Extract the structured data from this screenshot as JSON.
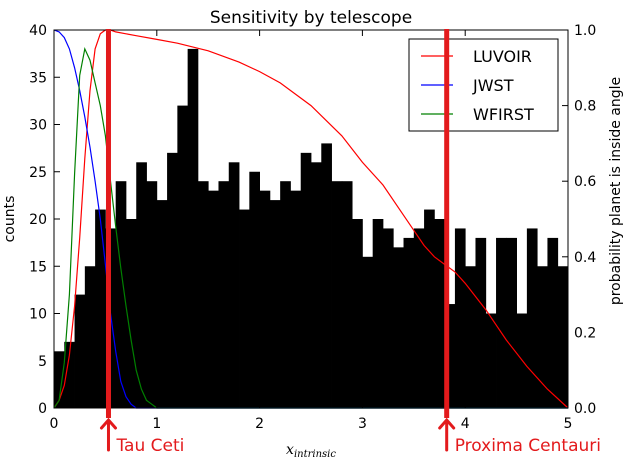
{
  "chart_data": {
    "type": "bar",
    "title": "Sensitivity by telescope",
    "xlabel": "x_intrinsic",
    "ylabel": "counts",
    "y2label": "probability planet is inside angle",
    "xlim": [
      0,
      5
    ],
    "ylim": [
      0,
      40
    ],
    "y2lim": [
      0,
      1
    ],
    "xticks": [
      0,
      1,
      2,
      3,
      4,
      5
    ],
    "xtick_labels": [
      "0",
      "1",
      "2",
      "3",
      "4",
      "5"
    ],
    "yticks": [
      0,
      5,
      10,
      15,
      20,
      25,
      30,
      35,
      40
    ],
    "ytick_labels": [
      "0",
      "5",
      "10",
      "15",
      "20",
      "25",
      "30",
      "35",
      "40"
    ],
    "y2ticks": [
      0,
      0.2,
      0.4,
      0.6,
      0.8,
      1.0
    ],
    "y2tick_labels": [
      "0.0",
      "0.2",
      "0.4",
      "0.6",
      "0.8",
      "1.0"
    ],
    "grid": false,
    "legend_position": "top-right",
    "histogram": {
      "bin_width": 0.1,
      "bin_starts": [
        0.0,
        0.1,
        0.2,
        0.3,
        0.4,
        0.5,
        0.6,
        0.7,
        0.8,
        0.9,
        1.0,
        1.1,
        1.2,
        1.3,
        1.4,
        1.5,
        1.6,
        1.7,
        1.8,
        1.9,
        2.0,
        2.1,
        2.2,
        2.3,
        2.4,
        2.5,
        2.6,
        2.7,
        2.8,
        2.9,
        3.0,
        3.1,
        3.2,
        3.3,
        3.4,
        3.5,
        3.6,
        3.7,
        3.8,
        3.9,
        4.0,
        4.1,
        4.2,
        4.3,
        4.4,
        4.5,
        4.6,
        4.7,
        4.8,
        4.9
      ],
      "counts": [
        6,
        7,
        12,
        15,
        21,
        19,
        24,
        20,
        26,
        24,
        22,
        27,
        32,
        38,
        24,
        23,
        24,
        26,
        21,
        25,
        23,
        22,
        24,
        23,
        27,
        26,
        28,
        24,
        24,
        20,
        16,
        20,
        19,
        17,
        18,
        19,
        21,
        20,
        11,
        19,
        15,
        18,
        10,
        18,
        18,
        10,
        19,
        15,
        18,
        15
      ],
      "color": "#000000"
    },
    "series": [
      {
        "name": "LUVOIR",
        "color": "#ff0000",
        "x": [
          0.0,
          0.05,
          0.1,
          0.15,
          0.2,
          0.25,
          0.3,
          0.35,
          0.4,
          0.45,
          0.5,
          0.55,
          0.6,
          0.7,
          0.8,
          1.0,
          1.2,
          1.5,
          1.8,
          2.0,
          2.2,
          2.5,
          2.8,
          3.0,
          3.2,
          3.4,
          3.5,
          3.6,
          3.7,
          3.8,
          3.9,
          4.0,
          4.2,
          4.4,
          4.6,
          4.8,
          5.0
        ],
        "y": [
          0.0,
          0.02,
          0.06,
          0.14,
          0.27,
          0.45,
          0.66,
          0.84,
          0.95,
          0.99,
          1.0,
          1.0,
          0.995,
          0.99,
          0.985,
          0.975,
          0.965,
          0.945,
          0.915,
          0.89,
          0.86,
          0.8,
          0.72,
          0.65,
          0.59,
          0.51,
          0.47,
          0.43,
          0.4,
          0.38,
          0.36,
          0.33,
          0.26,
          0.18,
          0.11,
          0.05,
          0.0
        ]
      },
      {
        "name": "JWST",
        "color": "#0000ff",
        "x": [
          0.0,
          0.05,
          0.1,
          0.15,
          0.2,
          0.25,
          0.3,
          0.35,
          0.4,
          0.45,
          0.5,
          0.55,
          0.6,
          0.65,
          0.7,
          0.75,
          0.8,
          0.9,
          1.0,
          2.0,
          3.0,
          4.0,
          5.0
        ],
        "y": [
          1.0,
          0.995,
          0.98,
          0.95,
          0.9,
          0.84,
          0.77,
          0.69,
          0.6,
          0.5,
          0.38,
          0.25,
          0.15,
          0.07,
          0.03,
          0.01,
          0.0,
          0.0,
          0.0,
          0.0,
          0.0,
          0.0,
          0.0
        ]
      },
      {
        "name": "WFIRST",
        "color": "#008000",
        "x": [
          0.0,
          0.05,
          0.1,
          0.15,
          0.2,
          0.25,
          0.3,
          0.35,
          0.4,
          0.45,
          0.5,
          0.55,
          0.6,
          0.65,
          0.7,
          0.75,
          0.8,
          0.85,
          0.9,
          0.95,
          1.0,
          1.2,
          2.0,
          3.0,
          4.0,
          5.0
        ],
        "y": [
          0.0,
          0.02,
          0.12,
          0.3,
          0.62,
          0.88,
          0.95,
          0.92,
          0.86,
          0.8,
          0.72,
          0.6,
          0.48,
          0.37,
          0.27,
          0.18,
          0.1,
          0.05,
          0.02,
          0.01,
          0.0,
          0.0,
          0.0,
          0.0,
          0.0,
          0.0
        ]
      }
    ],
    "markers": [
      {
        "x": 0.53,
        "label": "Tau Ceti",
        "color": "#e31a1c"
      },
      {
        "x": 3.82,
        "label": "Proxima Centauri",
        "color": "#e31a1c"
      }
    ]
  }
}
